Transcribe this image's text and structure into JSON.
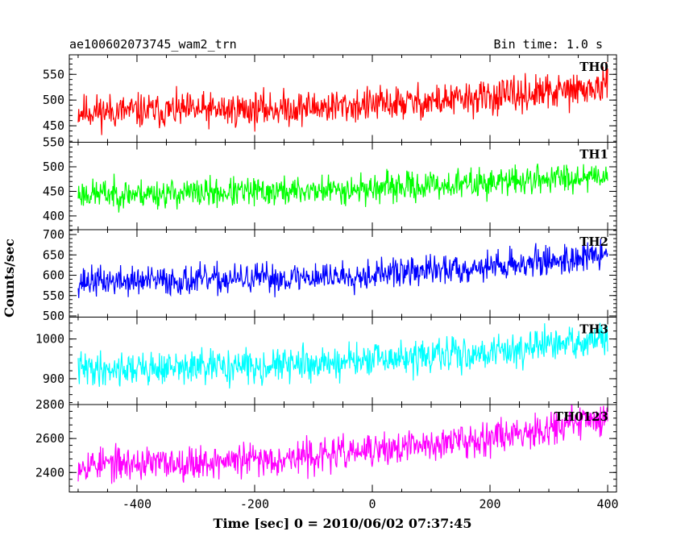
{
  "header": {
    "title": "ae100602073745_wam2_trn",
    "bin_time": "Bin time: 1.0 s"
  },
  "axes": {
    "xlabel": "Time [sec] 0 = 2010/06/02 07:37:45",
    "ylabel": "Counts/sec"
  },
  "chart_data": {
    "type": "line",
    "xlim": [
      -515,
      415
    ],
    "x_ticks": [
      -400,
      -200,
      0,
      200,
      400
    ],
    "x_range_data": [
      -500,
      400
    ],
    "grid": false,
    "panels": [
      {
        "name": "TH0",
        "color": "#ff0000",
        "ylim": [
          418,
          588
        ],
        "yticks": [
          450,
          500,
          550
        ],
        "trend_start": 478,
        "trend_end": 525,
        "noise": 24,
        "seed": 11
      },
      {
        "name": "TH1",
        "color": "#00ff00",
        "ylim": [
          372,
          550
        ],
        "yticks": [
          400,
          450,
          500,
          550
        ],
        "trend_start": 445,
        "trend_end": 485,
        "noise": 21,
        "seed": 23
      },
      {
        "name": "TH2",
        "color": "#0000ff",
        "ylim": [
          497,
          712
        ],
        "yticks": [
          500,
          550,
          600,
          650,
          700
        ],
        "trend_start": 585,
        "trend_end": 650,
        "noise": 26,
        "seed": 37
      },
      {
        "name": "TH3",
        "color": "#00ffff",
        "ylim": [
          835,
          1055
        ],
        "yticks": [
          900,
          1000
        ],
        "trend_start": 925,
        "trend_end": 1000,
        "noise": 30,
        "seed": 41
      },
      {
        "name": "TH0123",
        "color": "#ff00ff",
        "ylim": [
          2285,
          2800
        ],
        "yticks": [
          2400,
          2600,
          2800
        ],
        "trend_start": 2450,
        "trend_end": 2730,
        "noise": 70,
        "seed": 53
      }
    ]
  }
}
